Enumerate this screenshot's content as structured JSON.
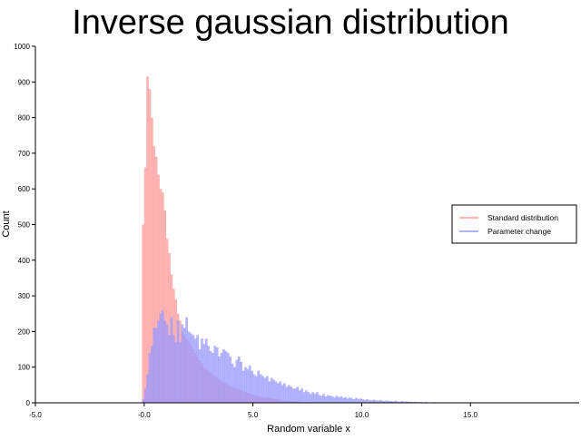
{
  "chart_data": {
    "type": "bar",
    "title": "Inverse gaussian distribution",
    "xlabel": "Random variable x",
    "ylabel": "Count",
    "xlim": [
      -5.0,
      20.0
    ],
    "ylim": [
      0,
      1000
    ],
    "x_ticks": [
      -5.0,
      0.0,
      5.0,
      10.0,
      15.0
    ],
    "x_tick_labels": [
      "-5.0",
      "-0.0",
      "5.0",
      "10.0",
      "15.0"
    ],
    "y_ticks": [
      0,
      100,
      200,
      300,
      400,
      500,
      600,
      700,
      800,
      900,
      1000
    ],
    "y_tick_labels": [
      "0",
      "100",
      "200",
      "300",
      "400",
      "500",
      "600",
      "700",
      "800",
      "900",
      "1000"
    ],
    "bin_width": 0.1,
    "legend_position": "right",
    "grid": false,
    "series": [
      {
        "name": "Standard distribution",
        "color": "#ff9999",
        "x_start": -0.1,
        "values": [
          500,
          660,
          915,
          880,
          800,
          720,
          690,
          640,
          600,
          590,
          540,
          460,
          420,
          360,
          320,
          290,
          250,
          230,
          200,
          190,
          180,
          170,
          160,
          150,
          140,
          130,
          120,
          110,
          100,
          95,
          90,
          85,
          80,
          75,
          70,
          65,
          62,
          58,
          55,
          50,
          48,
          45,
          42,
          40,
          38,
          35,
          33,
          30,
          28,
          26,
          24,
          22,
          20,
          19,
          18,
          17,
          16,
          15,
          14,
          13,
          12,
          11,
          10,
          9,
          8,
          7,
          6,
          5,
          5,
          4,
          4,
          3,
          3,
          2,
          2,
          2,
          1,
          1
        ]
      },
      {
        "name": "Parameter change",
        "color": "#9999ff",
        "x_start": -0.1,
        "values": [
          10,
          40,
          80,
          140,
          160,
          210,
          210,
          230,
          250,
          260,
          230,
          220,
          190,
          240,
          190,
          170,
          230,
          170,
          220,
          210,
          240,
          200,
          195,
          190,
          180,
          190,
          150,
          180,
          165,
          180,
          160,
          145,
          140,
          160,
          155,
          130,
          140,
          150,
          145,
          140,
          130,
          110,
          100,
          120,
          130,
          115,
          90,
          100,
          95,
          105,
          90,
          80,
          75,
          90,
          80,
          75,
          70,
          75,
          60,
          70,
          65,
          60,
          55,
          60,
          50,
          55,
          45,
          50,
          45,
          40,
          40,
          45,
          35,
          40,
          30,
          35,
          30,
          25,
          30,
          25,
          30,
          22,
          20,
          25,
          18,
          22,
          20,
          18,
          15,
          20,
          15,
          18,
          14,
          16,
          12,
          15,
          12,
          10,
          14,
          10,
          12,
          10,
          8,
          10,
          8,
          7,
          9,
          7,
          6,
          8,
          6,
          5,
          7,
          5,
          5,
          4,
          6,
          4,
          3,
          5,
          3,
          4,
          3,
          3,
          2,
          3,
          2,
          2,
          2,
          1,
          2,
          1,
          1,
          1,
          2,
          1,
          1,
          1,
          1,
          1,
          1,
          0,
          1,
          0,
          1,
          0,
          1
        ]
      }
    ]
  }
}
